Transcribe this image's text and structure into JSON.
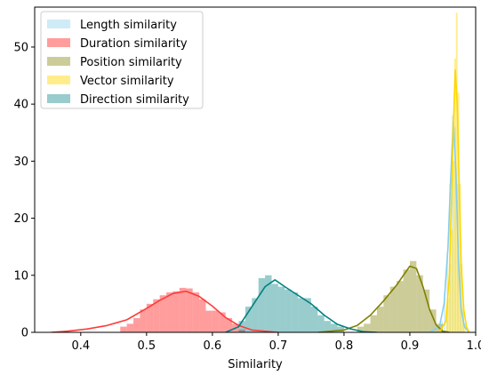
{
  "chart_data": {
    "type": "histogram-kde",
    "title": "",
    "xlabel": "Similarity",
    "ylabel": "",
    "xlim": [
      0.33,
      1.0
    ],
    "ylim": [
      0,
      57
    ],
    "xticks": [
      "0.4",
      "0.5",
      "0.6",
      "0.7",
      "0.8",
      "0.9",
      "1.0"
    ],
    "yticks": [
      "0",
      "10",
      "20",
      "30",
      "40",
      "50"
    ],
    "grid": false,
    "legend_position": "upper-left",
    "series": [
      {
        "name": "Length similarity",
        "color": "#87CEEB",
        "fill_opacity": 0.4,
        "bin_width": 0.002,
        "bins": [
          [
            0.948,
            2
          ],
          [
            0.952,
            6
          ],
          [
            0.956,
            14
          ],
          [
            0.96,
            26
          ],
          [
            0.964,
            38
          ],
          [
            0.968,
            36
          ],
          [
            0.972,
            26
          ],
          [
            0.976,
            12
          ],
          [
            0.98,
            4
          ]
        ],
        "kde": [
          [
            0.93,
            0
          ],
          [
            0.945,
            1
          ],
          [
            0.952,
            5
          ],
          [
            0.958,
            15
          ],
          [
            0.962,
            27
          ],
          [
            0.966,
            37
          ],
          [
            0.97,
            28
          ],
          [
            0.974,
            12
          ],
          [
            0.978,
            4
          ],
          [
            0.983,
            1
          ],
          [
            0.99,
            0
          ]
        ]
      },
      {
        "name": "Duration similarity",
        "color": "#FF3B3B",
        "fill_opacity": 0.5,
        "bin_width": 0.01,
        "bins": [
          [
            0.46,
            1
          ],
          [
            0.47,
            1.5
          ],
          [
            0.48,
            2.5
          ],
          [
            0.49,
            4
          ],
          [
            0.5,
            5
          ],
          [
            0.51,
            5.8
          ],
          [
            0.52,
            6.5
          ],
          [
            0.53,
            7
          ],
          [
            0.54,
            7.2
          ],
          [
            0.55,
            7.8
          ],
          [
            0.56,
            7.7
          ],
          [
            0.57,
            7
          ],
          [
            0.58,
            5.8
          ],
          [
            0.59,
            3.8
          ],
          [
            0.6,
            3.8
          ],
          [
            0.61,
            3.5
          ],
          [
            0.62,
            2.5
          ],
          [
            0.63,
            1.5
          ],
          [
            0.64,
            0.5
          ]
        ],
        "kde": [
          [
            0.355,
            0
          ],
          [
            0.38,
            0.2
          ],
          [
            0.41,
            0.6
          ],
          [
            0.44,
            1.2
          ],
          [
            0.47,
            2.2
          ],
          [
            0.5,
            4.2
          ],
          [
            0.52,
            5.6
          ],
          [
            0.54,
            6.8
          ],
          [
            0.56,
            7.2
          ],
          [
            0.58,
            6.3
          ],
          [
            0.6,
            4.6
          ],
          [
            0.62,
            2.6
          ],
          [
            0.64,
            1.2
          ],
          [
            0.66,
            0.4
          ],
          [
            0.7,
            0
          ]
        ]
      },
      {
        "name": "Position similarity",
        "color": "#808000",
        "fill_opacity": 0.4,
        "bin_width": 0.01,
        "bins": [
          [
            0.82,
            1
          ],
          [
            0.83,
            1.5
          ],
          [
            0.84,
            3
          ],
          [
            0.85,
            4.5
          ],
          [
            0.86,
            6.5
          ],
          [
            0.87,
            8
          ],
          [
            0.88,
            9
          ],
          [
            0.89,
            11
          ],
          [
            0.9,
            12.5
          ],
          [
            0.91,
            10
          ],
          [
            0.92,
            7.5
          ],
          [
            0.93,
            4
          ],
          [
            0.94,
            1.5
          ]
        ],
        "kde": [
          [
            0.76,
            0
          ],
          [
            0.8,
            0.4
          ],
          [
            0.82,
            1.2
          ],
          [
            0.84,
            3
          ],
          [
            0.86,
            5.5
          ],
          [
            0.88,
            8.3
          ],
          [
            0.9,
            11.6
          ],
          [
            0.91,
            11.2
          ],
          [
            0.92,
            8
          ],
          [
            0.93,
            4
          ],
          [
            0.94,
            1.3
          ],
          [
            0.95,
            0.2
          ],
          [
            0.96,
            0
          ]
        ]
      },
      {
        "name": "Vector similarity",
        "color": "#FFD700",
        "fill_opacity": 0.45,
        "bin_width": 0.0025,
        "bins": [
          [
            0.955,
            2
          ],
          [
            0.9575,
            6
          ],
          [
            0.96,
            12
          ],
          [
            0.9625,
            18
          ],
          [
            0.965,
            30
          ],
          [
            0.9675,
            48
          ],
          [
            0.97,
            56
          ],
          [
            0.9725,
            42
          ],
          [
            0.975,
            26
          ],
          [
            0.9775,
            12
          ],
          [
            0.98,
            5
          ],
          [
            0.9825,
            1.5
          ]
        ],
        "kde": [
          [
            0.945,
            0
          ],
          [
            0.955,
            2
          ],
          [
            0.96,
            10
          ],
          [
            0.963,
            22
          ],
          [
            0.966,
            36
          ],
          [
            0.969,
            46
          ],
          [
            0.972,
            40
          ],
          [
            0.975,
            26
          ],
          [
            0.978,
            12
          ],
          [
            0.982,
            4
          ],
          [
            0.986,
            1
          ],
          [
            0.99,
            0
          ]
        ]
      },
      {
        "name": "Direction similarity",
        "color": "#008080",
        "fill_opacity": 0.4,
        "bin_width": 0.01,
        "bins": [
          [
            0.64,
            2
          ],
          [
            0.65,
            4.5
          ],
          [
            0.66,
            6
          ],
          [
            0.67,
            9.5
          ],
          [
            0.68,
            10
          ],
          [
            0.69,
            8.5
          ],
          [
            0.7,
            8
          ],
          [
            0.71,
            7.5
          ],
          [
            0.72,
            7
          ],
          [
            0.73,
            6
          ],
          [
            0.74,
            6
          ],
          [
            0.75,
            4.5
          ],
          [
            0.76,
            3
          ],
          [
            0.77,
            2
          ],
          [
            0.78,
            1.5
          ],
          [
            0.79,
            1
          ]
        ],
        "kde": [
          [
            0.62,
            0
          ],
          [
            0.64,
            1
          ],
          [
            0.66,
            4.5
          ],
          [
            0.68,
            8
          ],
          [
            0.695,
            9.2
          ],
          [
            0.71,
            8
          ],
          [
            0.73,
            6.5
          ],
          [
            0.75,
            5
          ],
          [
            0.77,
            3
          ],
          [
            0.79,
            1.4
          ],
          [
            0.81,
            0.6
          ],
          [
            0.83,
            0.1
          ],
          [
            0.85,
            0
          ]
        ]
      }
    ]
  }
}
